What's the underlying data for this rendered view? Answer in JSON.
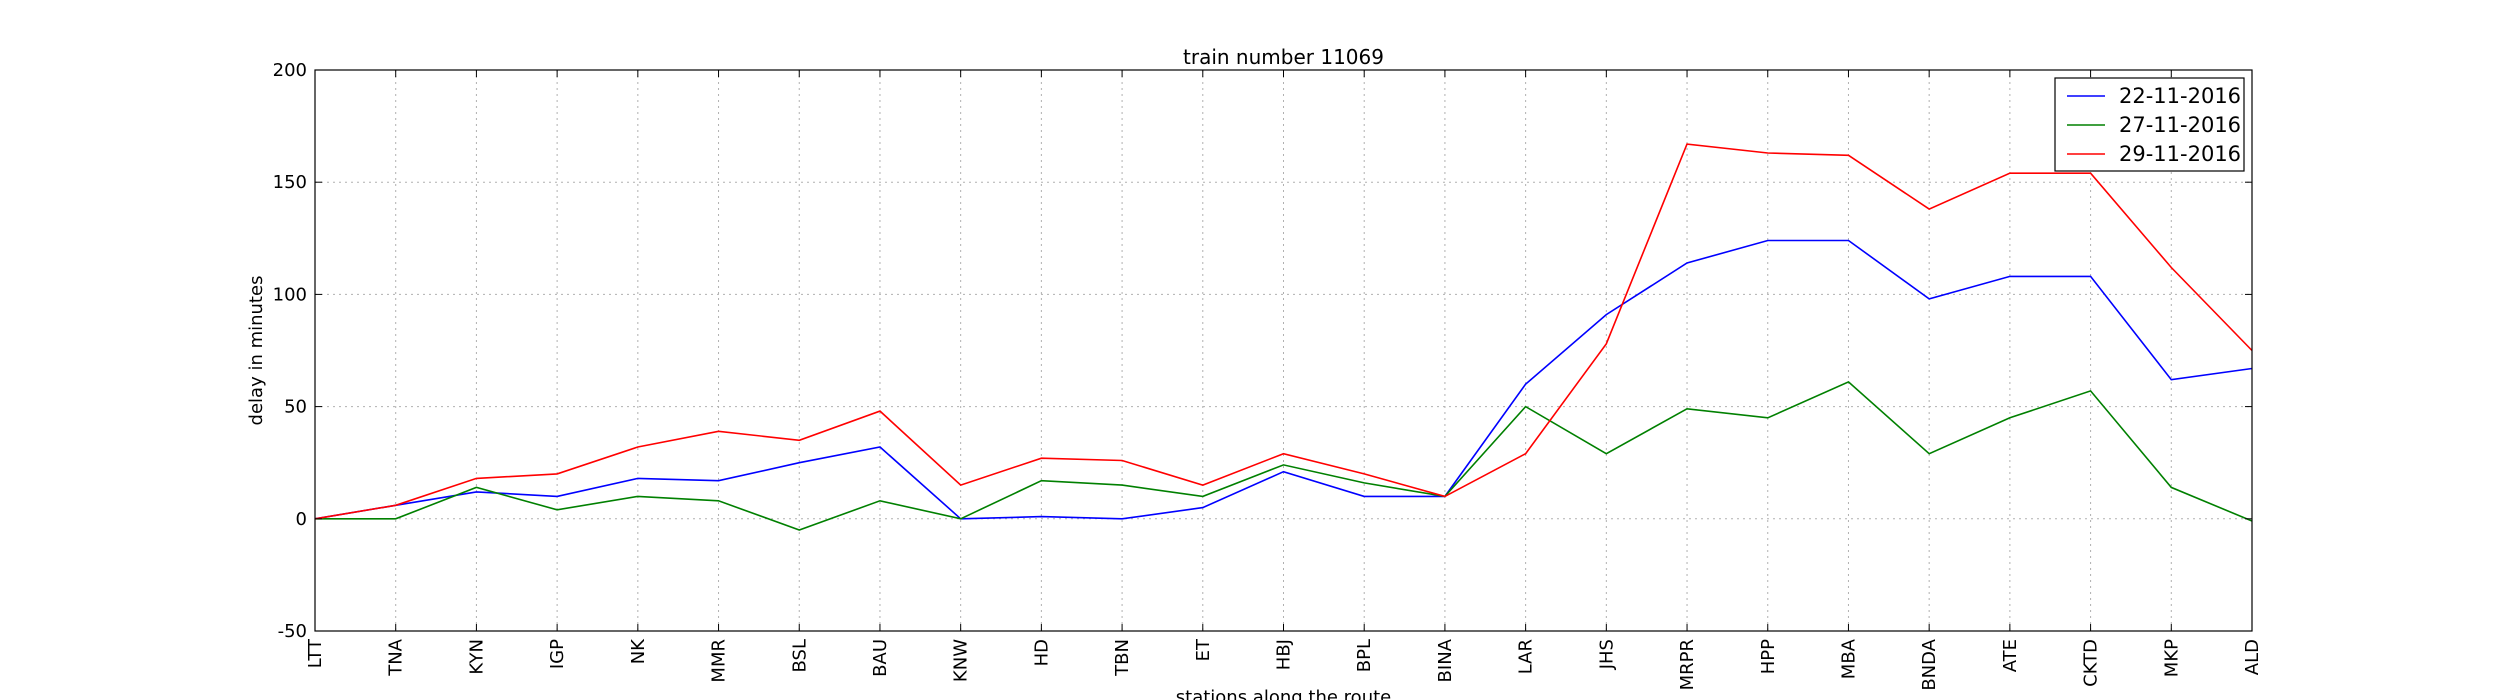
{
  "chart_data": {
    "type": "line",
    "title": "train number 11069",
    "xlabel": "stations along the route",
    "ylabel": "delay in minutes",
    "ylim": [
      -50,
      200
    ],
    "yticks": [
      -50,
      0,
      50,
      100,
      150,
      200
    ],
    "grid": true,
    "legend_position": "top-right",
    "categories": [
      "LTT",
      "TNA",
      "KYN",
      "IGP",
      "NK",
      "MMR",
      "BSL",
      "BAU",
      "KNW",
      "HD",
      "TBN",
      "ET",
      "HBJ",
      "BPL",
      "BINA",
      "LAR",
      "JHS",
      "MRPR",
      "HPP",
      "MBA",
      "BNDA",
      "ATE",
      "CKTD",
      "MKP",
      "ALD"
    ],
    "series": [
      {
        "name": "22-11-2016",
        "color": "#0000ff",
        "values": [
          0,
          6,
          12,
          10,
          18,
          17,
          25,
          32,
          0,
          1,
          0,
          5,
          21,
          10,
          10,
          60,
          91,
          114,
          124,
          124,
          98,
          108,
          108,
          62,
          67
        ]
      },
      {
        "name": "27-11-2016",
        "color": "#008000",
        "values": [
          0,
          0,
          14,
          4,
          10,
          8,
          -5,
          8,
          0,
          17,
          15,
          10,
          24,
          16,
          10,
          50,
          29,
          49,
          45,
          61,
          29,
          45,
          57,
          14,
          -1
        ]
      },
      {
        "name": "29-11-2016",
        "color": "#ff0000",
        "values": [
          0,
          6,
          18,
          20,
          32,
          39,
          35,
          48,
          15,
          27,
          26,
          15,
          29,
          20,
          10,
          29,
          78,
          167,
          163,
          162,
          138,
          154,
          154,
          112,
          75
        ]
      }
    ]
  }
}
